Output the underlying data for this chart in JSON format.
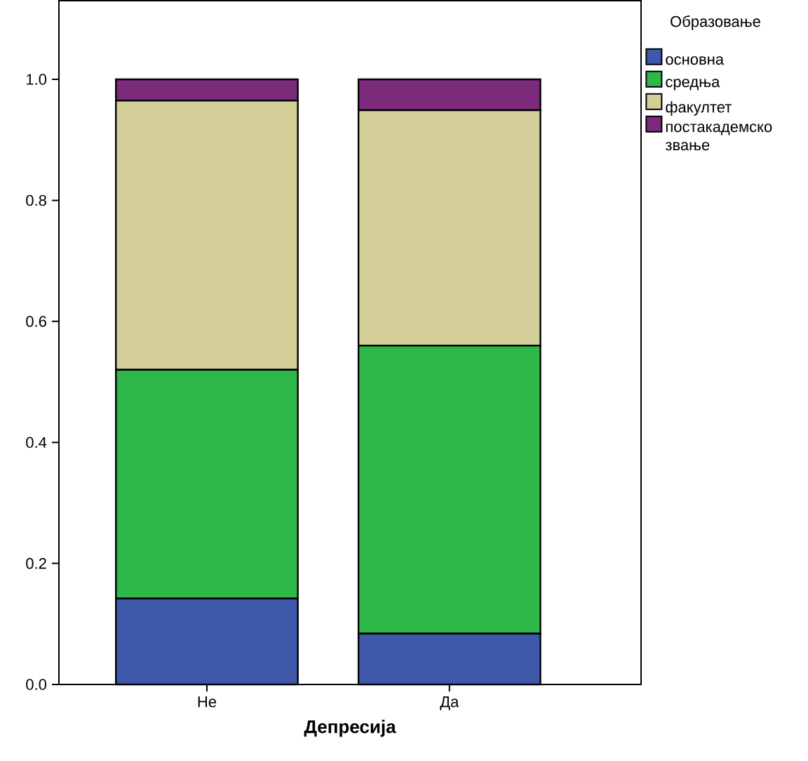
{
  "chart_data": {
    "type": "bar",
    "stacked": true,
    "xlabel": "Депресија",
    "legend_title": "Образовање",
    "legend": "top right",
    "categories": [
      "Не",
      "Да"
    ],
    "series": [
      {
        "name": "основна",
        "color": "#3f58aa",
        "values": [
          0.142,
          0.084
        ]
      },
      {
        "name": "средња",
        "color": "#2fb84a",
        "values": [
          0.378,
          0.476
        ]
      },
      {
        "name": "факултет",
        "color": "#d4cf99",
        "values": [
          0.445,
          0.389
        ]
      },
      {
        "name": "постакадемско звање",
        "color": "#7b2a7c",
        "values": [
          0.035,
          0.051
        ]
      }
    ],
    "ylim": [
      0,
      1.13
    ],
    "yticks": [
      {
        "value": 0,
        "label": "0.0"
      },
      {
        "value": 0.2,
        "label": "0.2"
      },
      {
        "value": 0.4,
        "label": "0.4"
      },
      {
        "value": 0.6,
        "label": "0.6"
      },
      {
        "value": 0.8,
        "label": "0.8"
      },
      {
        "value": 1.0,
        "label": "1.0"
      }
    ]
  }
}
